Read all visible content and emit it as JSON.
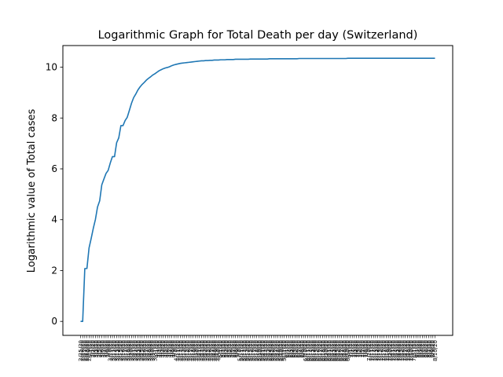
{
  "chart_data": {
    "type": "line",
    "title": "Logarithmic Graph for Total Death per day (Switzerland)",
    "xlabel": "",
    "ylabel": "Logarithmic value of Total cases",
    "x_start_date": "2/25/20",
    "x_end_date": "8/14/20",
    "ylim": [
      -0.55,
      10.85
    ],
    "yticks": [
      0,
      2,
      4,
      6,
      8,
      10
    ],
    "grid": false,
    "legend": "none",
    "line_color": "#1f77b4",
    "series": [
      {
        "values": [
          0,
          0,
          2.08,
          2.08,
          2.89,
          3.26,
          3.66,
          4.01,
          4.5,
          4.74,
          5.37,
          5.6,
          5.82,
          5.94,
          6.23,
          6.48,
          6.48,
          7.03,
          7.22,
          7.7,
          7.7,
          7.9,
          8.03,
          8.3,
          8.58,
          8.8,
          8.94,
          9.1,
          9.22,
          9.32,
          9.4,
          9.49,
          9.56,
          9.62,
          9.69,
          9.74,
          9.8,
          9.86,
          9.9,
          9.94,
          9.97,
          9.99,
          10.02,
          10.06,
          10.09,
          10.11,
          10.13,
          10.15,
          10.16,
          10.17,
          10.18,
          10.19,
          10.2,
          10.21,
          10.22,
          10.23,
          10.24,
          10.25,
          10.25,
          10.26,
          10.26,
          10.27,
          10.27,
          10.28,
          10.28,
          10.28,
          10.29,
          10.29,
          10.29,
          10.3,
          10.3,
          10.3,
          10.3,
          10.31,
          10.31,
          10.31,
          10.31,
          10.31,
          10.31,
          10.31,
          10.32,
          10.32,
          10.32,
          10.32,
          10.32,
          10.32,
          10.32,
          10.32,
          10.32,
          10.33,
          10.33,
          10.33,
          10.33,
          10.33,
          10.33,
          10.33,
          10.33,
          10.33,
          10.33,
          10.33,
          10.33,
          10.33,
          10.33,
          10.34,
          10.34,
          10.34,
          10.34,
          10.34,
          10.34,
          10.34,
          10.34,
          10.34,
          10.34,
          10.34,
          10.34,
          10.34,
          10.34,
          10.34,
          10.34,
          10.34,
          10.34,
          10.34,
          10.34,
          10.34,
          10.34,
          10.34,
          10.35,
          10.35,
          10.35,
          10.35,
          10.35,
          10.35,
          10.35,
          10.35,
          10.35,
          10.35,
          10.35,
          10.35,
          10.35,
          10.35,
          10.35,
          10.35,
          10.35,
          10.35,
          10.35,
          10.35,
          10.35,
          10.35,
          10.35,
          10.35,
          10.35,
          10.35,
          10.35,
          10.35,
          10.35,
          10.35,
          10.35,
          10.35,
          10.35,
          10.35,
          10.35,
          10.35,
          10.35,
          10.35,
          10.35,
          10.35,
          10.35,
          10.35
        ]
      }
    ]
  }
}
